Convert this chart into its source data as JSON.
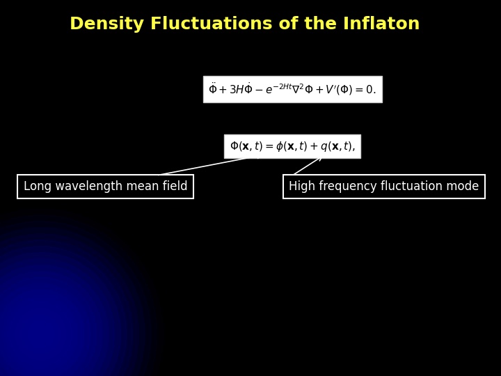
{
  "title": "Density Fluctuations of the Inflaton",
  "title_color": "#ffff44",
  "title_fontsize": 18,
  "title_fontweight": "bold",
  "background_color": "#000000",
  "eq1": "$\\ddot{\\Phi}+3H\\dot{\\Phi}-e^{-2Ht}\\nabla^2\\Phi+V'(\\Phi)=0.$",
  "eq2": "$\\Phi(\\mathbf{x},t)=\\phi(\\mathbf{x},t)+q(\\mathbf{x},t),$",
  "label_left": "Long wavelength mean field",
  "label_right": "High frequency fluctuation mode",
  "label_color": "#ffffff",
  "label_fontsize": 12,
  "eq_fontsize": 11,
  "box_facecolor": "#ffffff",
  "box_edgecolor": "#cccccc",
  "arrow_color": "#ffffff",
  "curve_color": "#1111cc",
  "curve_linewidth": 1.5,
  "dot_color": "#3355ff",
  "glow_color": "#000088"
}
